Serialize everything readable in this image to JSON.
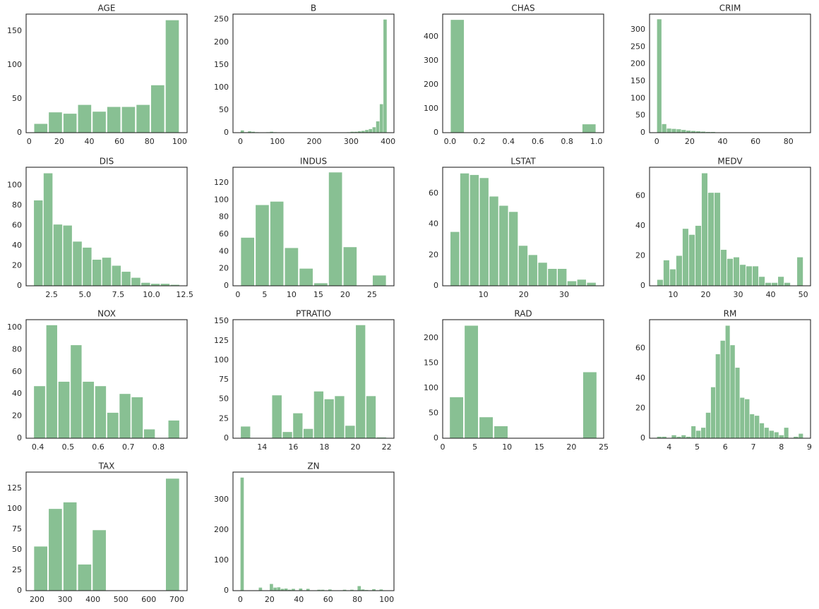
{
  "chart_data": [
    {
      "type": "histogram",
      "title": "AGE",
      "color": "#88c093",
      "bins": [
        2.9,
        12.61,
        22.32,
        32.03,
        41.74,
        51.45,
        61.16,
        70.87,
        80.58,
        90.29,
        100
      ],
      "values": [
        13,
        30,
        28,
        41,
        31,
        38,
        38,
        41,
        70,
        166
      ],
      "xlim": [
        -2,
        105
      ],
      "ylim": [
        0,
        175
      ],
      "xticks": [
        0,
        20,
        40,
        60,
        80,
        100
      ],
      "yticks": [
        0,
        50,
        100,
        150
      ]
    },
    {
      "type": "histogram",
      "title": "B",
      "color": "#88c093",
      "bins": [
        0.32,
        10.23,
        20.15,
        30.06,
        39.98,
        49.89,
        59.81,
        69.72,
        79.64,
        89.55,
        99.47,
        109.38,
        119.29,
        129.21,
        139.12,
        149.04,
        158.95,
        168.87,
        178.78,
        188.7,
        198.61,
        208.52,
        218.44,
        228.35,
        238.27,
        248.18,
        258.1,
        268.01,
        277.93,
        287.84,
        297.76,
        307.67,
        317.58,
        327.5,
        337.41,
        347.33,
        357.24,
        367.16,
        377.07,
        386.99,
        396.9
      ],
      "values": [
        5,
        1,
        3,
        2,
        1,
        0,
        0,
        1,
        2,
        1,
        0,
        0,
        0,
        0,
        0,
        0,
        0,
        0,
        0,
        0,
        0,
        0,
        0,
        0,
        0,
        0,
        0,
        0,
        0,
        1,
        2,
        2,
        3,
        4,
        6,
        8,
        12,
        25,
        63,
        250
      ],
      "xlim": [
        -20,
        416
      ],
      "ylim": [
        0,
        262
      ],
      "xticks": [
        0,
        100,
        200,
        300,
        400
      ],
      "yticks": [
        0,
        50,
        100,
        150,
        200,
        250
      ]
    },
    {
      "type": "histogram",
      "title": "CHAS",
      "color": "#88c093",
      "bins": [
        0,
        0.1,
        0.2,
        0.3,
        0.4,
        0.5,
        0.6,
        0.7,
        0.8,
        0.9,
        1.0
      ],
      "values": [
        471,
        0,
        0,
        0,
        0,
        0,
        0,
        0,
        0,
        35
      ],
      "xlim": [
        -0.05,
        1.05
      ],
      "ylim": [
        0,
        495
      ],
      "xticks": [
        {
          "value": 0,
          "label": "0.0"
        },
        {
          "value": 0.2,
          "label": "0.2"
        },
        {
          "value": 0.4,
          "label": "0.4"
        },
        {
          "value": 0.6,
          "label": "0.6"
        },
        {
          "value": 0.8,
          "label": "0.8"
        },
        {
          "value": 1,
          "label": "1.0"
        }
      ],
      "yticks": [
        0,
        100,
        200,
        300,
        400
      ]
    },
    {
      "type": "histogram",
      "title": "CRIM",
      "color": "#88c093",
      "bins": [
        0.01,
        2.98,
        5.94,
        8.91,
        11.87,
        14.84,
        17.81,
        20.77,
        23.74,
        26.7,
        29.67,
        32.64,
        35.6,
        38.57,
        41.53,
        44.5,
        47.47,
        50.43,
        53.4,
        56.36,
        59.33,
        62.3,
        65.26,
        68.23,
        71.19,
        74.16,
        77.13,
        80.09,
        83.06,
        86.02,
        88.99
      ],
      "values": [
        330,
        25,
        12,
        11,
        10,
        8,
        6,
        5,
        4,
        3,
        2,
        2,
        1,
        1,
        1,
        0,
        0,
        0,
        0,
        0,
        0,
        0,
        0,
        0,
        0,
        0,
        0,
        0,
        0,
        1
      ],
      "xlim": [
        -4.4,
        93.4
      ],
      "ylim": [
        0,
        345
      ],
      "xticks": [
        0,
        20,
        40,
        60,
        80
      ],
      "yticks": [
        0,
        50,
        100,
        150,
        200,
        250,
        300
      ]
    },
    {
      "type": "histogram",
      "title": "DIS",
      "color": "#88c093",
      "bins": [
        1.13,
        1.86,
        2.6,
        3.33,
        4.06,
        4.8,
        5.53,
        6.26,
        7.0,
        7.73,
        8.46,
        9.2,
        9.93,
        10.66,
        11.4,
        12.13
      ],
      "values": [
        85,
        112,
        61,
        60,
        44,
        38,
        26,
        28,
        20,
        14,
        8,
        3,
        2,
        2,
        1
      ],
      "xlim": [
        0.58,
        12.68
      ],
      "ylim": [
        0,
        118
      ],
      "xticks": [
        {
          "value": 2.5,
          "label": "2.5"
        },
        {
          "value": 5,
          "label": "5.0"
        },
        {
          "value": 7.5,
          "label": "7.5"
        },
        {
          "value": 10,
          "label": "10.0"
        },
        {
          "value": 12.5,
          "label": "12.5"
        }
      ],
      "yticks": [
        0,
        20,
        40,
        60,
        80,
        100
      ]
    },
    {
      "type": "histogram",
      "title": "INDUS",
      "color": "#88c093",
      "bins": [
        0.46,
        3.19,
        5.92,
        8.64,
        11.37,
        14.1,
        16.83,
        19.56,
        22.28,
        25.01,
        27.74
      ],
      "values": [
        56,
        94,
        98,
        44,
        20,
        3,
        132,
        45,
        0,
        12
      ],
      "xlim": [
        -0.9,
        29.1
      ],
      "ylim": [
        0,
        138
      ],
      "xticks": [
        0,
        5,
        10,
        15,
        20,
        25
      ],
      "yticks": [
        0,
        20,
        40,
        60,
        80,
        100,
        120
      ]
    },
    {
      "type": "histogram",
      "title": "LSTAT",
      "color": "#88c093",
      "bins": [
        1.73,
        4.15,
        6.56,
        8.98,
        11.39,
        13.81,
        16.23,
        18.64,
        21.06,
        23.47,
        25.89,
        28.31,
        30.72,
        33.14,
        35.55,
        37.97
      ],
      "values": [
        35,
        73,
        72,
        70,
        58,
        52,
        48,
        26,
        20,
        15,
        11,
        11,
        3,
        4,
        2
      ],
      "xlim": [
        -0.08,
        39.8
      ],
      "ylim": [
        0,
        77
      ],
      "xticks": [
        10,
        20,
        30
      ],
      "yticks": [
        0,
        20,
        40,
        60
      ]
    },
    {
      "type": "histogram",
      "title": "MEDV",
      "color": "#88c093",
      "bins": [
        5,
        6.96,
        8.91,
        10.87,
        12.83,
        14.78,
        16.74,
        18.7,
        20.65,
        22.61,
        24.57,
        26.52,
        28.48,
        30.43,
        32.39,
        34.35,
        36.3,
        38.26,
        40.22,
        42.17,
        44.13,
        46.09,
        48.04,
        50
      ],
      "values": [
        4,
        17,
        11,
        20,
        38,
        34,
        40,
        75,
        62,
        62,
        24,
        18,
        19,
        14,
        13,
        13,
        6,
        2,
        2,
        6,
        2,
        0,
        19
      ],
      "xlim": [
        2.75,
        52.25
      ],
      "ylim": [
        0,
        79
      ],
      "xticks": [
        10,
        20,
        30,
        40,
        50
      ],
      "yticks": [
        0,
        20,
        40,
        60
      ]
    },
    {
      "type": "histogram",
      "title": "NOX",
      "color": "#88c093",
      "bins": [
        0.385,
        0.426,
        0.466,
        0.507,
        0.547,
        0.588,
        0.628,
        0.669,
        0.709,
        0.75,
        0.79,
        0.831,
        0.871
      ],
      "values": [
        47,
        102,
        51,
        84,
        51,
        47,
        23,
        40,
        37,
        8,
        0,
        16
      ],
      "xlim": [
        0.361,
        0.895
      ],
      "ylim": [
        0,
        107
      ],
      "xticks": [
        0.4,
        0.5,
        0.6,
        0.7,
        0.8
      ],
      "yticks": [
        0,
        20,
        40,
        60,
        80,
        100
      ]
    },
    {
      "type": "histogram",
      "title": "PTRATIO",
      "color": "#88c093",
      "bins": [
        12.6,
        13.27,
        13.94,
        14.61,
        15.29,
        15.96,
        16.63,
        17.3,
        17.97,
        18.64,
        19.31,
        19.99,
        20.66,
        21.33,
        22.0
      ],
      "values": [
        15,
        0,
        0,
        55,
        8,
        32,
        12,
        60,
        50,
        54,
        16,
        145,
        54,
        1
      ],
      "xlim": [
        12.13,
        22.47
      ],
      "ylim": [
        0,
        152
      ],
      "xticks": [
        14,
        16,
        18,
        20,
        22
      ],
      "yticks": [
        0,
        25,
        50,
        75,
        100,
        125,
        150
      ]
    },
    {
      "type": "histogram",
      "title": "RAD",
      "color": "#88c093",
      "bins": [
        1,
        3.3,
        5.6,
        7.9,
        10.2,
        12.5,
        14.8,
        17.1,
        19.4,
        21.7,
        24
      ],
      "values": [
        82,
        225,
        42,
        24,
        0,
        0,
        0,
        0,
        0,
        132
      ],
      "xlim": [
        0,
        25
      ],
      "ylim": [
        0,
        237
      ],
      "xticks": [
        0,
        5,
        10,
        15,
        20,
        25
      ],
      "yticks": [
        0,
        50,
        100,
        150,
        200
      ]
    },
    {
      "type": "histogram",
      "title": "RM",
      "color": "#88c093",
      "bins": [
        3.56,
        3.73,
        3.91,
        4.08,
        4.26,
        4.43,
        4.6,
        4.78,
        4.95,
        5.13,
        5.3,
        5.48,
        5.65,
        5.82,
        6.0,
        6.17,
        6.35,
        6.52,
        6.69,
        6.87,
        7.04,
        7.22,
        7.39,
        7.56,
        7.74,
        7.91,
        8.09,
        8.26,
        8.43,
        8.61,
        8.78
      ],
      "values": [
        1,
        1,
        0,
        2,
        1,
        2,
        1,
        8,
        5,
        7,
        17,
        34,
        56,
        65,
        75,
        62,
        47,
        27,
        26,
        16,
        15,
        10,
        7,
        5,
        4,
        2,
        7,
        0,
        1,
        3
      ],
      "xlim": [
        3.3,
        9.04
      ],
      "ylim": [
        0,
        79
      ],
      "xticks": [
        4,
        5,
        6,
        7,
        8,
        9
      ],
      "yticks": [
        0,
        20,
        40,
        60
      ]
    },
    {
      "type": "histogram",
      "title": "TAX",
      "color": "#88c093",
      "bins": [
        187,
        239.4,
        291.8,
        344.2,
        396.6,
        449,
        501.4,
        553.8,
        606.2,
        658.6,
        711
      ],
      "values": [
        54,
        100,
        108,
        32,
        74,
        0,
        0,
        0,
        0,
        137
      ],
      "xlim": [
        161,
        737
      ],
      "ylim": [
        0,
        145
      ],
      "xticks": [
        200,
        300,
        400,
        500,
        600,
        700
      ],
      "yticks": [
        0,
        25,
        50,
        75,
        100,
        125
      ]
    },
    {
      "type": "histogram",
      "title": "ZN",
      "color": "#88c093",
      "bins": [
        0,
        2.5,
        5,
        7.5,
        10,
        12.5,
        15,
        17.5,
        20,
        22.5,
        25,
        27.5,
        30,
        32.5,
        35,
        37.5,
        40,
        42.5,
        45,
        47.5,
        50,
        52.5,
        55,
        57.5,
        60,
        62.5,
        65,
        67.5,
        70,
        72.5,
        75,
        77.5,
        80,
        82.5,
        85,
        87.5,
        90,
        92.5,
        95,
        97.5,
        100
      ],
      "values": [
        372,
        0,
        0,
        0,
        0,
        10,
        0,
        0,
        22,
        10,
        11,
        6,
        7,
        3,
        6,
        0,
        7,
        0,
        6,
        0,
        0,
        3,
        3,
        0,
        4,
        0,
        0,
        0,
        3,
        0,
        3,
        0,
        15,
        4,
        2,
        0,
        5,
        0,
        4,
        0
      ],
      "xlim": [
        -5,
        105
      ],
      "ylim": [
        0,
        390
      ],
      "xticks": [
        0,
        20,
        40,
        60,
        80,
        100
      ],
      "yticks": [
        0,
        100,
        200,
        300
      ]
    }
  ]
}
